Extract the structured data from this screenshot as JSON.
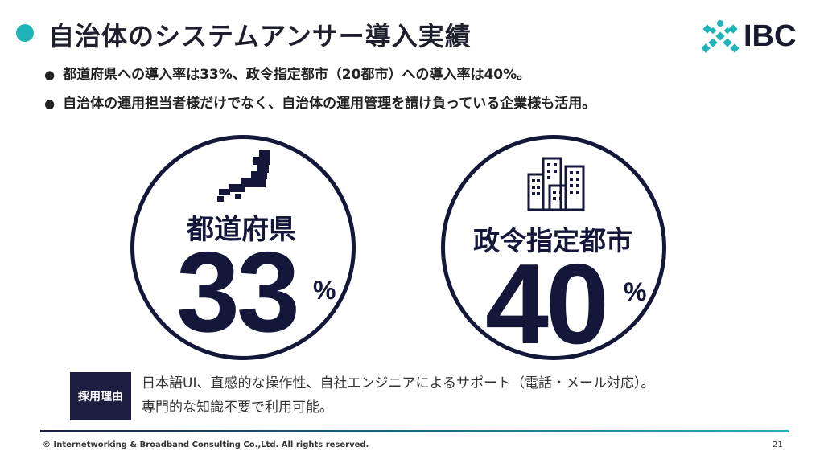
{
  "header": {
    "title": "自治体のシステムアンサー導入実績",
    "logo_text": "IBC"
  },
  "bullets": [
    "都道府県への導入率は33%、政令指定都市（20都市）への導入率は40%。",
    "自治体の運用担当者様だけでなく、自治体の運用管理を請け負っている企業様も活用。"
  ],
  "stats": {
    "prefectures": {
      "label": "都道府県",
      "value": "33",
      "unit": "%"
    },
    "cities": {
      "label": "政令指定都市",
      "value": "40",
      "unit": "%"
    }
  },
  "reason": {
    "badge": "採用理由",
    "line1": "日本語UI、直感的な操作性、自社エンジニアによるサポート（電話・メール対応）。",
    "line2": "専門的な知識不要で利用可能。"
  },
  "footer": {
    "copyright": "© Internetworking & Broadband Consulting Co.,Ltd. All rights reserved.",
    "page_number": "21"
  },
  "colors": {
    "accent": "#1fb5b8",
    "navy": "#14163a"
  },
  "icons": {
    "logo_mark": "ibc-cross-logo-icon",
    "prefecture_icon": "japan-map-icon",
    "city_icon": "buildings-icon"
  }
}
